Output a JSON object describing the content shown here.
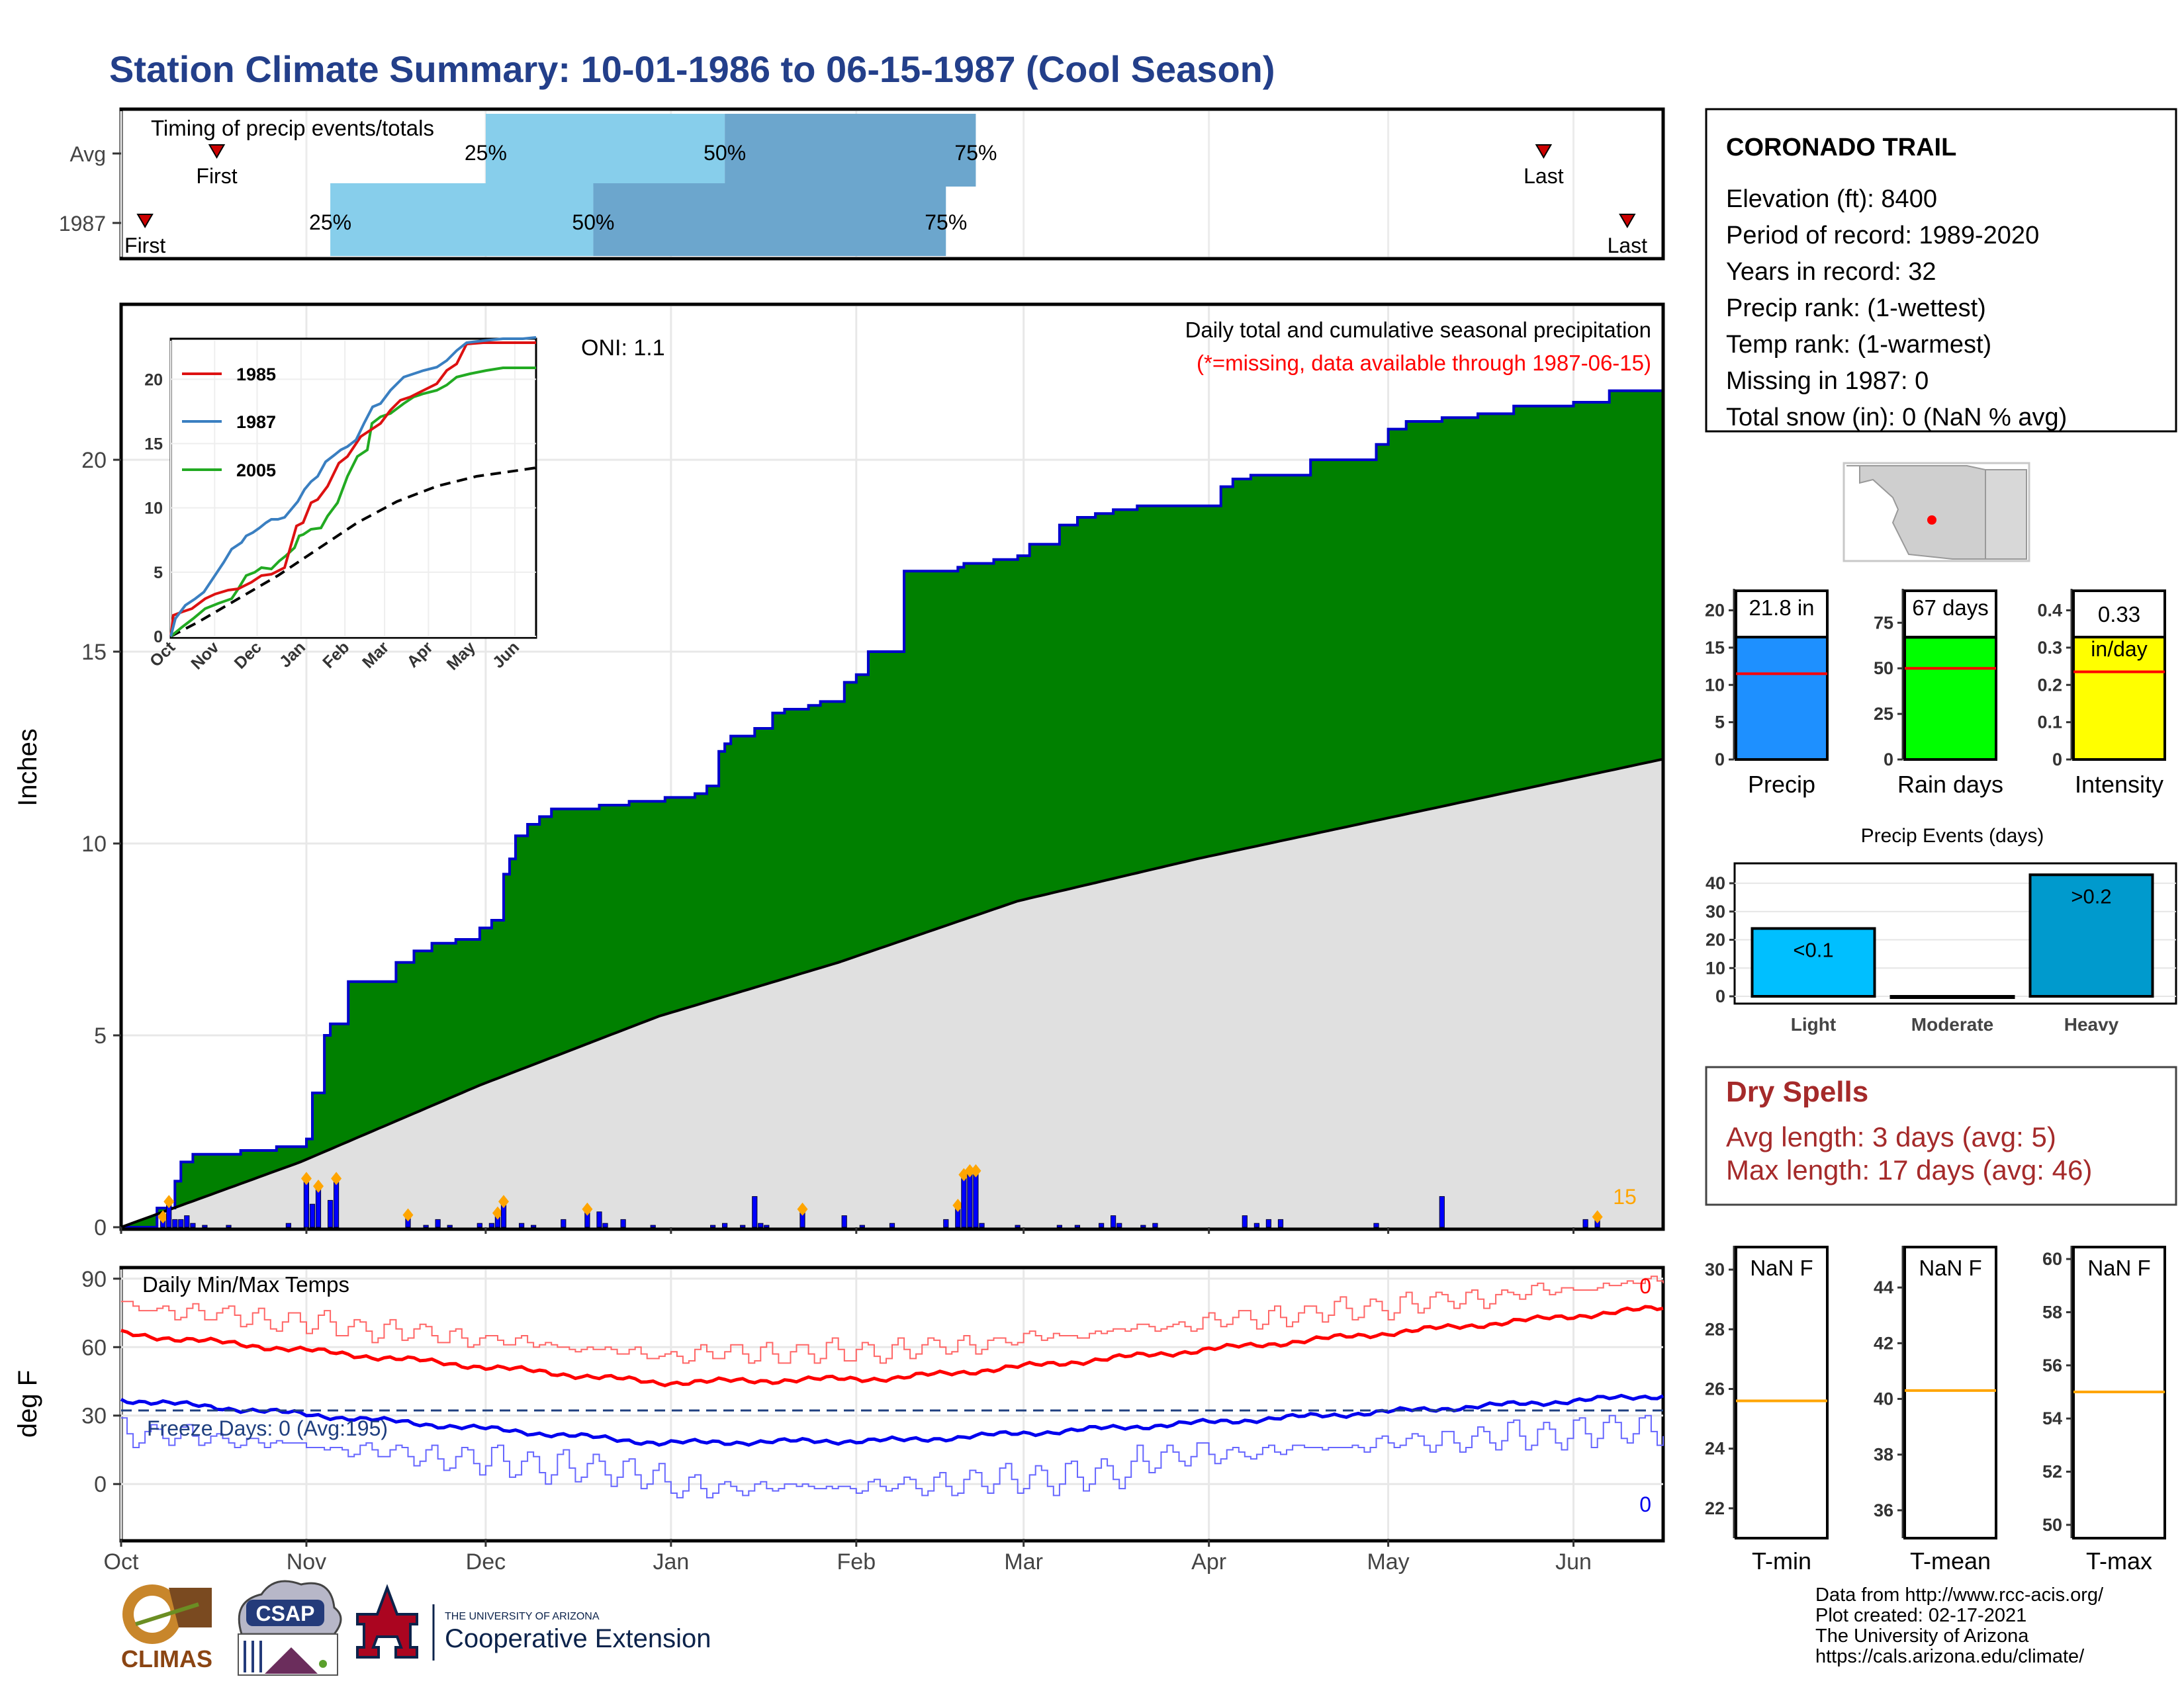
{
  "title": "Station Climate Summary: 10-01-1986 to 06-15-1987 (Cool Season)",
  "timing": {
    "heading": "Timing of precip events/totals",
    "rows": [
      {
        "label": "Avg",
        "first_label": "First",
        "last_label": "Last",
        "first_day": 16,
        "last_day": 238,
        "p25_label": "25%",
        "p50_label": "50%",
        "p75_label": "75%",
        "p25_day": 61,
        "p50_day": 101,
        "p75_day": 143
      },
      {
        "label": "1987",
        "first_label": "First",
        "last_label": "Last",
        "first_day": 4,
        "last_day": 252,
        "p25_label": "25%",
        "p50_label": "50%",
        "p75_label": "75%",
        "p25_day": 35,
        "p50_day": 79,
        "p75_day": 138
      }
    ],
    "colors": {
      "light": "#87ceeb",
      "dark": "#6ca6cd",
      "marker": "#cc0000"
    }
  },
  "main": {
    "ylabel": "Inches",
    "oni": "ONI: 1.1",
    "caption1": "Daily total and cumulative seasonal precipitation",
    "caption2": "(*=missing, data available through 1987-06-15)",
    "count_label": "15",
    "colors": {
      "above": "#008000",
      "line": "#0000cc",
      "avg_fill": "#e0e0e0",
      "bars": "#0000ff",
      "diamond": "#ffa500",
      "caption2": "#ff0000"
    }
  },
  "temps": {
    "heading": "Daily Min/Max Temps",
    "ylabel": "deg F",
    "freeze": "Freeze Days: 0 (Avg:195)",
    "max_count": "0",
    "min_count": "0",
    "colors": {
      "max": "#ff0000",
      "min": "#0000ff",
      "freeze_line": "#1f3f7f"
    }
  },
  "station": {
    "name": "CORONADO TRAIL",
    "lines": [
      "Elevation (ft): 8400",
      "Period of record: 1989-2020",
      "Years in record: 32",
      "Precip rank:  (1-wettest)",
      "Temp rank:  (1-warmest)",
      "Missing in 1987: 0",
      "Total snow (in): 0 (NaN % avg)"
    ]
  },
  "summary_bars": [
    {
      "label": "Precip",
      "value": 21.8,
      "value_label": "21.8 in",
      "avg": 11.5,
      "ymax": 22,
      "ticks": [
        0,
        5,
        10,
        15,
        20
      ],
      "color": "#1e90ff"
    },
    {
      "label": "Rain days",
      "value": 67,
      "value_label": "67 days",
      "avg": 50,
      "ymax": 90,
      "ticks": [
        0,
        25,
        50,
        75
      ],
      "color": "#00ff00"
    },
    {
      "label": "Intensity",
      "value": 0.33,
      "value_label": "0.33",
      "value_label2": "in/day",
      "avg": 0.235,
      "ymax": 0.44,
      "ticks": [
        0.0,
        0.1,
        0.2,
        0.3,
        0.4
      ],
      "color": "#ffff00"
    }
  ],
  "events": {
    "title": "Precip Events (days)",
    "categories": [
      "Light",
      "Moderate",
      "Heavy"
    ],
    "bar_labels": [
      "<0.1",
      "",
      ">0.2"
    ],
    "values": [
      24,
      0,
      43
    ],
    "ticks": [
      0,
      10,
      20,
      30,
      40
    ],
    "colors": [
      "#00bfff",
      "#00bfff",
      "#009acd"
    ]
  },
  "dry_spells": {
    "title": "Dry Spells",
    "line1": "Avg length: 3 days (avg: 5)",
    "line2": "Max length: 17 days (avg: 46)",
    "color": "#a52a2a"
  },
  "temp_boxes": [
    {
      "label": "T-min",
      "value": "NaN F",
      "ticks": [
        22,
        24,
        26,
        28,
        30
      ],
      "avg": 25.6,
      "ymin": 21.0,
      "ymax": 30.8
    },
    {
      "label": "T-mean",
      "value": "NaN F",
      "ticks": [
        36,
        38,
        40,
        42,
        44
      ],
      "avg": 40.3,
      "ymin": 35.0,
      "ymax": 45.5
    },
    {
      "label": "T-max",
      "value": "NaN F",
      "ticks": [
        50,
        52,
        54,
        56,
        58,
        60
      ],
      "avg": 55.0,
      "ymin": 49.5,
      "ymax": 60.5
    }
  ],
  "footer": {
    "lines": [
      "Data from http://www.rcc-acis.org/",
      "Plot created: 02-17-2021",
      "The University of Arizona",
      "https://cals.arizona.edu/climate/"
    ],
    "logo_climas": "CLIMAS",
    "logo_csap": "CSAP",
    "logo_ua_small": "THE UNIVERSITY OF ARIZONA",
    "logo_ua_big": "Cooperative Extension"
  },
  "chart_data": {
    "type": "area",
    "title": "Daily total and cumulative seasonal precipitation",
    "ylabel": "Inches",
    "xlabel": "",
    "x_tick_labels": [
      "Oct",
      "Nov",
      "Dec",
      "Jan",
      "Feb",
      "Mar",
      "Apr",
      "May",
      "Jun"
    ],
    "x_tick_days": [
      0,
      31,
      61,
      92,
      123,
      151,
      182,
      212,
      243
    ],
    "x_range_days": [
      0,
      258
    ],
    "ylim": [
      0,
      24
    ],
    "y_ticks": [
      0,
      5,
      10,
      15,
      20
    ],
    "series": [
      {
        "name": "1987",
        "days": [
          0,
          6,
          9,
          10,
          12,
          16,
          20,
          26,
          31,
          32,
          34,
          35,
          38,
          40,
          43,
          46,
          49,
          52,
          56,
          60,
          62,
          64,
          65,
          66,
          68,
          70,
          72,
          75,
          80,
          85,
          91,
          96,
          98,
          100,
          101,
          102,
          106,
          109,
          111,
          115,
          117,
          121,
          123,
          125,
          131,
          138,
          140,
          141,
          146,
          150,
          152,
          157,
          160,
          163,
          166,
          170,
          174,
          184,
          186,
          189,
          199,
          210,
          212,
          215,
          221,
          227,
          233,
          243,
          249,
          254,
          258
        ],
        "values": [
          0,
          0.5,
          1.2,
          1.7,
          1.9,
          1.9,
          2.0,
          2.1,
          2.3,
          3.5,
          5.0,
          5.3,
          6.4,
          6.4,
          6.4,
          6.9,
          7.2,
          7.4,
          7.5,
          7.8,
          8.0,
          9.2,
          9.6,
          10.2,
          10.5,
          10.7,
          10.9,
          10.9,
          11.0,
          11.1,
          11.2,
          11.3,
          11.5,
          12.4,
          12.6,
          12.8,
          13.0,
          13.4,
          13.5,
          13.6,
          13.7,
          14.2,
          14.4,
          15.0,
          17.1,
          17.1,
          17.2,
          17.3,
          17.4,
          17.5,
          17.8,
          18.3,
          18.5,
          18.6,
          18.7,
          18.8,
          18.8,
          19.3,
          19.5,
          19.6,
          20.0,
          20.4,
          20.8,
          21.0,
          21.1,
          21.2,
          21.4,
          21.5,
          21.8,
          21.8,
          21.8
        ]
      },
      {
        "name": "Avg",
        "days": [
          0,
          30,
          60,
          90,
          120,
          150,
          180,
          210,
          240,
          258
        ],
        "values": [
          0,
          1.7,
          3.7,
          5.5,
          6.9,
          8.5,
          9.6,
          10.6,
          11.6,
          12.2
        ]
      }
    ],
    "daily_bars_days": [
      7,
      8,
      9,
      10,
      11,
      12,
      14,
      18,
      28,
      31,
      32,
      33,
      35,
      36,
      48,
      51,
      53,
      55,
      60,
      62,
      63,
      64,
      67,
      69,
      74,
      78,
      80,
      81,
      84,
      89,
      99,
      101,
      104,
      106,
      107,
      108,
      114,
      121,
      124,
      129,
      138,
      140,
      141,
      142,
      143,
      144,
      150,
      157,
      160,
      164,
      166,
      167,
      171,
      173,
      188,
      190,
      192,
      194,
      210,
      221,
      245,
      247
    ],
    "daily_bars_values": [
      0.2,
      0.6,
      0.2,
      0.2,
      0.3,
      0.1,
      0.05,
      0.05,
      0.1,
      1.2,
      0.6,
      1.0,
      0.7,
      1.2,
      0.25,
      0.05,
      0.2,
      0.05,
      0.1,
      0.1,
      0.3,
      0.6,
      0.1,
      0.05,
      0.2,
      0.4,
      0.4,
      0.1,
      0.2,
      0.05,
      0.05,
      0.1,
      0.05,
      0.8,
      0.1,
      0.05,
      0.4,
      0.3,
      0.05,
      0.1,
      0.2,
      0.5,
      1.3,
      1.4,
      1.4,
      0.1,
      0.05,
      0.05,
      0.05,
      0.1,
      0.3,
      0.1,
      0.05,
      0.1,
      0.3,
      0.1,
      0.2,
      0.2,
      0.1,
      0.8,
      0.2,
      0.2
    ]
  }
}
